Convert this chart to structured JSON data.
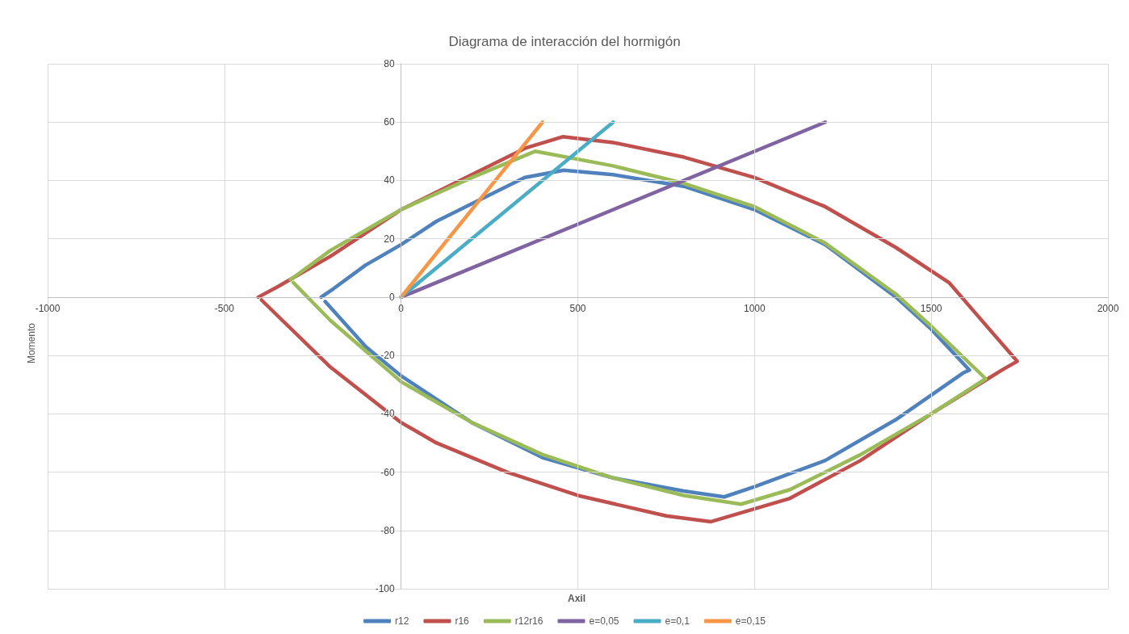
{
  "chart_data": {
    "type": "line",
    "title": "Diagrama de interacción del hormigón",
    "xlabel": "Axil",
    "ylabel": "Momento",
    "xlim": [
      -1000,
      2000
    ],
    "xticks": [
      -1000,
      -500,
      0,
      500,
      1000,
      1500,
      2000
    ],
    "ylim": [
      -100,
      80
    ],
    "yticks": [
      -100,
      -80,
      -60,
      -40,
      -20,
      0,
      20,
      40,
      60,
      80
    ],
    "grid": true,
    "legend": "bottom",
    "marker": "none",
    "line_style": "solid",
    "series": [
      {
        "name": "r12",
        "color": "#4f81bd",
        "x": [
          -226,
          -190,
          -100,
          0,
          100,
          200,
          350,
          460,
          600,
          800,
          1000,
          1200,
          1400,
          1500,
          1608,
          1590,
          1400,
          1200,
          1000,
          914,
          800,
          600,
          400,
          200,
          0,
          -100,
          -215
        ],
        "values": [
          0,
          3,
          11,
          18,
          26,
          32,
          41,
          43.5,
          42,
          38,
          30,
          18,
          0,
          -11,
          -25,
          -26,
          -42,
          -56,
          -65,
          -68.5,
          -66.5,
          -62,
          -55,
          -43,
          -27,
          -17,
          -1.5
        ]
      },
      {
        "name": "r16",
        "color": "#c0504d",
        "x": [
          -404,
          -350,
          -200,
          0,
          200,
          350,
          457,
          600,
          800,
          1000,
          1200,
          1400,
          1550,
          1650,
          1743,
          1700,
          1660,
          1500,
          1300,
          1100,
          877,
          750,
          500,
          300,
          100,
          0,
          -200,
          -395
        ],
        "values": [
          0,
          3.5,
          14,
          30,
          42,
          51,
          55,
          53,
          48,
          41,
          31,
          17,
          5,
          -9,
          -22,
          -25,
          -28,
          -40,
          -56,
          -69,
          -77,
          -75,
          -68,
          -60,
          -50,
          -43,
          -24,
          -1
        ]
      },
      {
        "name": "r12r16",
        "color": "#9bbb59",
        "x": [
          -313,
          -200,
          0,
          200,
          379,
          600,
          800,
          1000,
          1200,
          1400,
          1500,
          1654,
          1500,
          1300,
          1100,
          962,
          800,
          600,
          400,
          200,
          0,
          -200,
          -305
        ],
        "values": [
          6,
          16,
          30,
          41,
          50,
          45,
          39,
          31,
          18.5,
          1,
          -10,
          -28,
          -40,
          -54,
          -66,
          -71,
          -68,
          -62,
          -54,
          -43,
          -29,
          -8,
          5
        ]
      },
      {
        "name": "e=0,05",
        "color": "#8064a2",
        "x": [
          0,
          1200
        ],
        "values": [
          0,
          60
        ]
      },
      {
        "name": "e=0,1",
        "color": "#4bacc6",
        "x": [
          0,
          600
        ],
        "values": [
          0,
          60
        ]
      },
      {
        "name": "e=0,15",
        "color": "#f79646",
        "x": [
          0,
          400
        ],
        "values": [
          0,
          60
        ]
      }
    ]
  }
}
